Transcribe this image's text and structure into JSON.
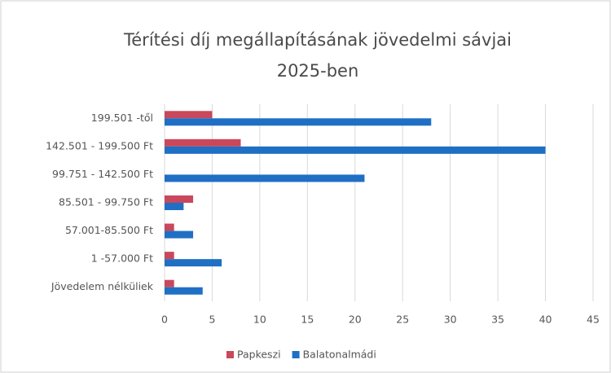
{
  "chart_data": {
    "type": "hbar",
    "title": [
      "Térítési díj megállapításának jövedelmi sávjai",
      "2025-ben"
    ],
    "categories": [
      "199.501 -től",
      "142.501 - 199.500 Ft",
      "99.751 - 142.500 Ft",
      "85.501 - 99.750 Ft",
      "57.001-85.500 Ft",
      "1 -57.000 Ft",
      "Jövedelem nélküliek"
    ],
    "series": [
      {
        "name": "Papkeszi",
        "color": "#c9485b",
        "values": [
          5,
          8,
          0,
          3,
          1,
          1,
          1
        ]
      },
      {
        "name": "Balatonalmádi",
        "color": "#1f6fc5",
        "values": [
          28,
          40,
          21,
          2,
          3,
          6,
          4
        ]
      }
    ],
    "xlim": [
      0,
      45
    ],
    "xticks": [
      0,
      5,
      10,
      15,
      20,
      25,
      30,
      35,
      40,
      45
    ],
    "grid": true,
    "legend": "bottom"
  }
}
